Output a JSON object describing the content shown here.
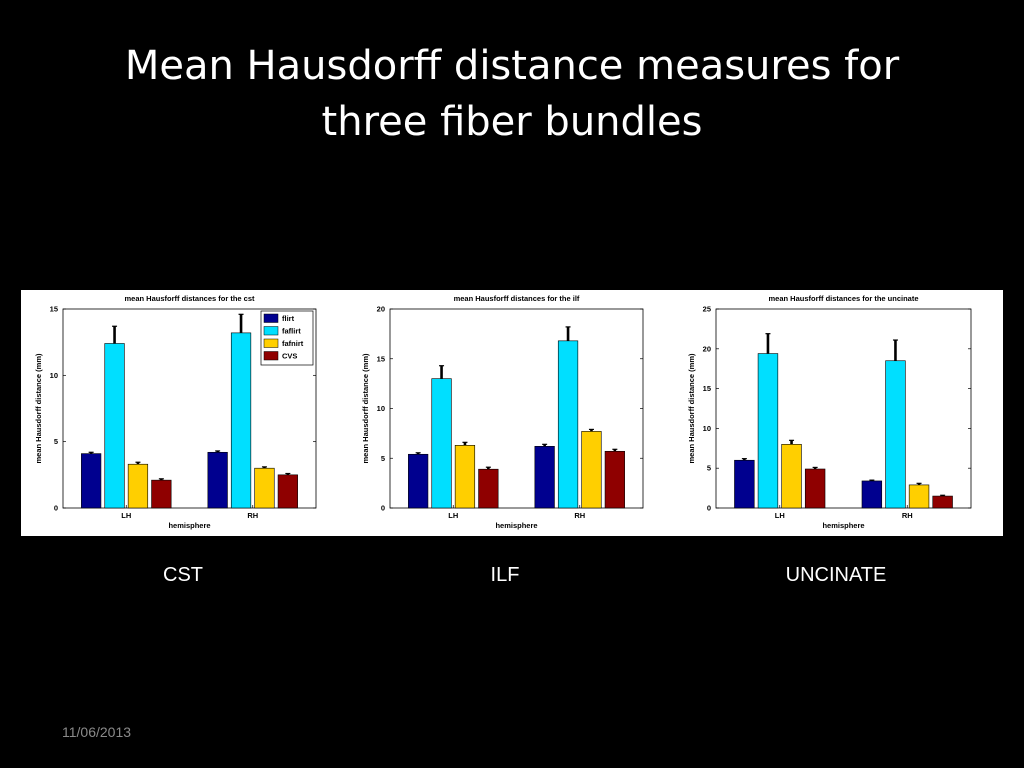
{
  "slide": {
    "title_line1": "Mean Hausdorff distance measures for",
    "title_line2": "three fiber bundles",
    "date": "11/06/2013",
    "captions": [
      "CST",
      "ILF",
      "UNCINATE"
    ]
  },
  "colors": {
    "flirt": "#00008f",
    "faflirt": "#00dfff",
    "fafnirt": "#ffcf00",
    "CVS": "#8f0000",
    "error_bar": "#000000"
  },
  "chart_data": [
    {
      "type": "bar",
      "title": "mean Hausforff distances for the cst",
      "xlabel": "hemisphere",
      "ylabel": "mean Hausdorff distance (mm)",
      "categories": [
        "LH",
        "RH"
      ],
      "ylim": [
        0,
        15
      ],
      "yticks": [
        0,
        5,
        10,
        15
      ],
      "legend": "top-right",
      "series": [
        {
          "name": "flirt",
          "values": [
            4.1,
            4.2
          ],
          "errors": [
            0.1,
            0.1
          ]
        },
        {
          "name": "faflirt",
          "values": [
            12.4,
            13.2
          ],
          "errors": [
            1.3,
            1.4
          ]
        },
        {
          "name": "fafnirt",
          "values": [
            3.3,
            3.0
          ],
          "errors": [
            0.15,
            0.1
          ]
        },
        {
          "name": "CVS",
          "values": [
            2.1,
            2.5
          ],
          "errors": [
            0.1,
            0.1
          ]
        }
      ]
    },
    {
      "type": "bar",
      "title": "mean Hausforff distances for the ilf",
      "xlabel": "hemisphere",
      "ylabel": "mean Hausdorff distance (mm)",
      "categories": [
        "LH",
        "RH"
      ],
      "ylim": [
        0,
        20
      ],
      "yticks": [
        0,
        5,
        10,
        15,
        20
      ],
      "series": [
        {
          "name": "flirt",
          "values": [
            5.4,
            6.2
          ],
          "errors": [
            0.15,
            0.2
          ]
        },
        {
          "name": "faflirt",
          "values": [
            13.0,
            16.8
          ],
          "errors": [
            1.3,
            1.4
          ]
        },
        {
          "name": "fafnirt",
          "values": [
            6.3,
            7.7
          ],
          "errors": [
            0.3,
            0.2
          ]
        },
        {
          "name": "CVS",
          "values": [
            3.9,
            5.7
          ],
          "errors": [
            0.2,
            0.2
          ]
        }
      ]
    },
    {
      "type": "bar",
      "title": "mean Hausforff distances for the uncinate",
      "xlabel": "hemisphere",
      "ylabel": "mean Hausdorff distance (mm)",
      "categories": [
        "LH",
        "RH"
      ],
      "ylim": [
        0,
        25
      ],
      "yticks": [
        0,
        5,
        10,
        15,
        20,
        25
      ],
      "series": [
        {
          "name": "flirt",
          "values": [
            6.0,
            3.4
          ],
          "errors": [
            0.2,
            0.1
          ]
        },
        {
          "name": "faflirt",
          "values": [
            19.4,
            18.5
          ],
          "errors": [
            2.5,
            2.6
          ]
        },
        {
          "name": "fafnirt",
          "values": [
            8.0,
            2.9
          ],
          "errors": [
            0.5,
            0.2
          ]
        },
        {
          "name": "CVS",
          "values": [
            4.9,
            1.5
          ],
          "errors": [
            0.2,
            0.1
          ]
        }
      ]
    }
  ]
}
